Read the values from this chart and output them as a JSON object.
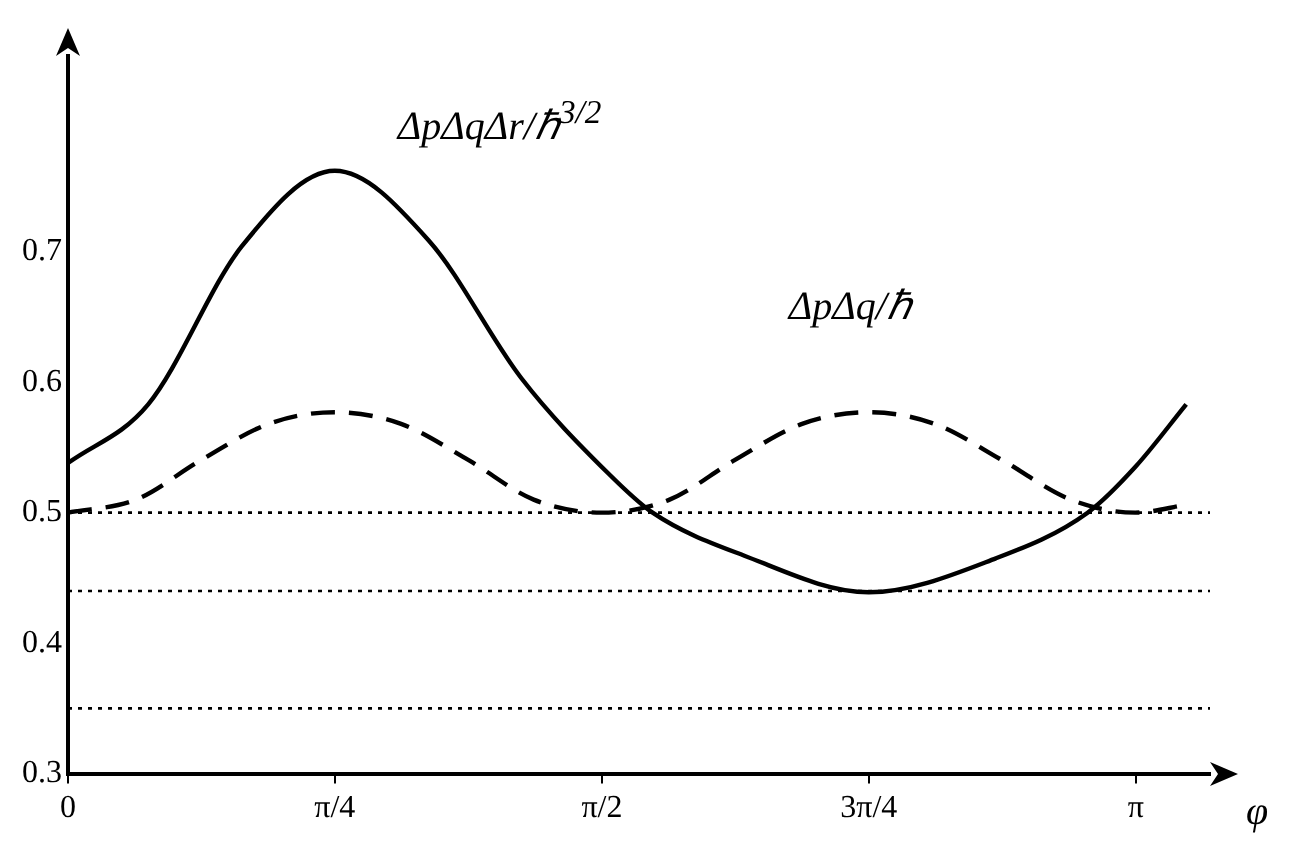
{
  "chart_data": {
    "type": "line",
    "xlabel": "φ",
    "series": [
      {
        "name": "ΔpΔqΔr/ℏ$^{3/2}$",
        "color": "#000000",
        "line_style": "solid",
        "x": [
          0,
          0.236,
          0.511,
          0.785,
          1.06,
          1.334,
          1.59,
          1.72,
          1.99,
          2.356,
          2.73,
          3.0,
          3.14,
          3.29
        ],
        "values": [
          0.538,
          0.583,
          0.704,
          0.762,
          0.709,
          0.603,
          0.53,
          0.5,
          0.467,
          0.439,
          0.465,
          0.5,
          0.535,
          0.583
        ]
      },
      {
        "name": "ΔpΔq/ℏ",
        "color": "#000000",
        "line_style": "dashed",
        "x": [
          0,
          0.2,
          0.39,
          0.59,
          0.785,
          0.98,
          1.18,
          1.37,
          1.57,
          1.77,
          1.96,
          2.16,
          2.356,
          2.55,
          2.75,
          2.95,
          3.14,
          3.29
        ],
        "values": [
          0.5,
          0.51,
          0.54,
          0.568,
          0.577,
          0.568,
          0.54,
          0.51,
          0.5,
          0.51,
          0.54,
          0.568,
          0.577,
          0.568,
          0.54,
          0.51,
          0.5,
          0.506
        ]
      }
    ],
    "xlim": [
      0,
      3.36
    ],
    "xticks": [
      0,
      {
        "value": 0.785,
        "label": "π/4"
      },
      {
        "value": 1.571,
        "label": "π/2"
      },
      {
        "value": 2.356,
        "label": "3π/4"
      },
      {
        "value": 3.142,
        "label": "π"
      }
    ],
    "ylim": [
      0.3,
      0.85
    ],
    "yticks": [
      0.3,
      0.4,
      0.5,
      0.6,
      0.7
    ],
    "ref_lines": [
      {
        "axis": "y",
        "value": 0.5,
        "color": "#000000",
        "line_style": "dotted"
      },
      {
        "axis": "y",
        "value": 0.44,
        "color": "#000000",
        "line_style": "dotted"
      },
      {
        "axis": "y",
        "value": 0.35,
        "color": "#000000",
        "line_style": "dotted"
      }
    ],
    "grid": false,
    "legend": false,
    "marker": "none"
  }
}
